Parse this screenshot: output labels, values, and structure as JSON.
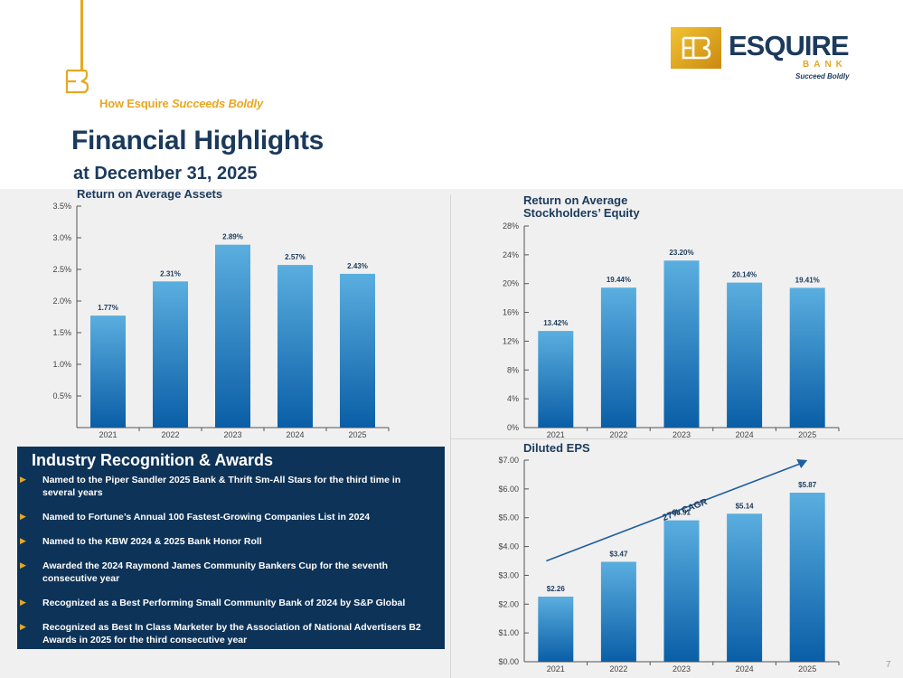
{
  "header": {
    "eyebrow_plain": "How Esquire ",
    "eyebrow_italic": "Succeeds Boldly",
    "title": "Financial Highlights",
    "subtitle": "at December 31, 2025"
  },
  "logo": {
    "wordmark": "ESQUIRE",
    "bank": "BANK",
    "tagline": "Succeed Boldly"
  },
  "colors": {
    "navy": "#1b3a5c",
    "gold": "#e6a823",
    "bar_top": "#5aaedf",
    "bar_bottom": "#0a5ea6",
    "panel": "#0e3358"
  },
  "chart_data": [
    {
      "type": "bar",
      "title": "Return on Average Assets",
      "categories": [
        "2021",
        "2022",
        "2023",
        "2024",
        "2025"
      ],
      "values": [
        1.77,
        2.31,
        2.89,
        2.57,
        2.43
      ],
      "data_labels": [
        "1.77%",
        "2.31%",
        "2.89%",
        "2.57%",
        "2.43%"
      ],
      "ylim": [
        0,
        3.5
      ],
      "yticks": [
        0.5,
        1.0,
        1.5,
        2.0,
        2.5,
        3.0,
        3.5
      ],
      "ytick_labels": [
        "0.5%",
        "1.0%",
        "1.5%",
        "2.0%",
        "2.5%",
        "3.0%",
        "3.5%"
      ]
    },
    {
      "type": "bar",
      "title": "Return on Average Stockholders' Equity",
      "title_lines": [
        "Return on Average",
        "Stockholders’ Equity"
      ],
      "categories": [
        "2021",
        "2022",
        "2023",
        "2024",
        "2025"
      ],
      "values": [
        13.42,
        19.44,
        23.2,
        20.14,
        19.41
      ],
      "data_labels": [
        "13.42%",
        "19.44%",
        "23.20%",
        "20.14%",
        "19.41%"
      ],
      "ylim": [
        0,
        28
      ],
      "yticks": [
        0,
        4,
        8,
        12,
        16,
        20,
        24,
        28
      ],
      "ytick_labels": [
        "0%",
        "4%",
        "8%",
        "12%",
        "16%",
        "20%",
        "24%",
        "28%"
      ]
    },
    {
      "type": "bar",
      "title": "Diluted EPS",
      "categories": [
        "2021",
        "2022",
        "2023",
        "2024",
        "2025"
      ],
      "values": [
        2.26,
        3.47,
        4.91,
        5.14,
        5.87
      ],
      "data_labels": [
        "$2.26",
        "$3.47",
        "$4.91",
        "$5.14",
        "$5.87"
      ],
      "ylim": [
        0,
        7
      ],
      "yticks": [
        0,
        1,
        2,
        3,
        4,
        5,
        6,
        7
      ],
      "ytick_labels": [
        "$0.00",
        "$1.00",
        "$2.00",
        "$3.00",
        "$4.00",
        "$5.00",
        "$6.00",
        "$7.00"
      ],
      "annotation": "27% CAGR"
    }
  ],
  "awards": {
    "title": "Industry Recognition & Awards",
    "items": [
      "Named to the Piper Sandler 2025 Bank & Thrift Sm-All Stars for the third time in several years",
      "Named to Fortune’s Annual 100 Fastest-Growing Companies List in 2024",
      "Named to the KBW 2024 & 2025 Bank Honor Roll",
      "Awarded the 2024 Raymond James Community Bankers Cup for the seventh consecutive year",
      "Recognized as a Best Performing Small Community Bank of 2024 by S&P Global",
      "Recognized as Best In Class Marketer by the Association of National Advertisers B2 Awards in 2025 for the third consecutive year"
    ]
  },
  "page_number": "7"
}
